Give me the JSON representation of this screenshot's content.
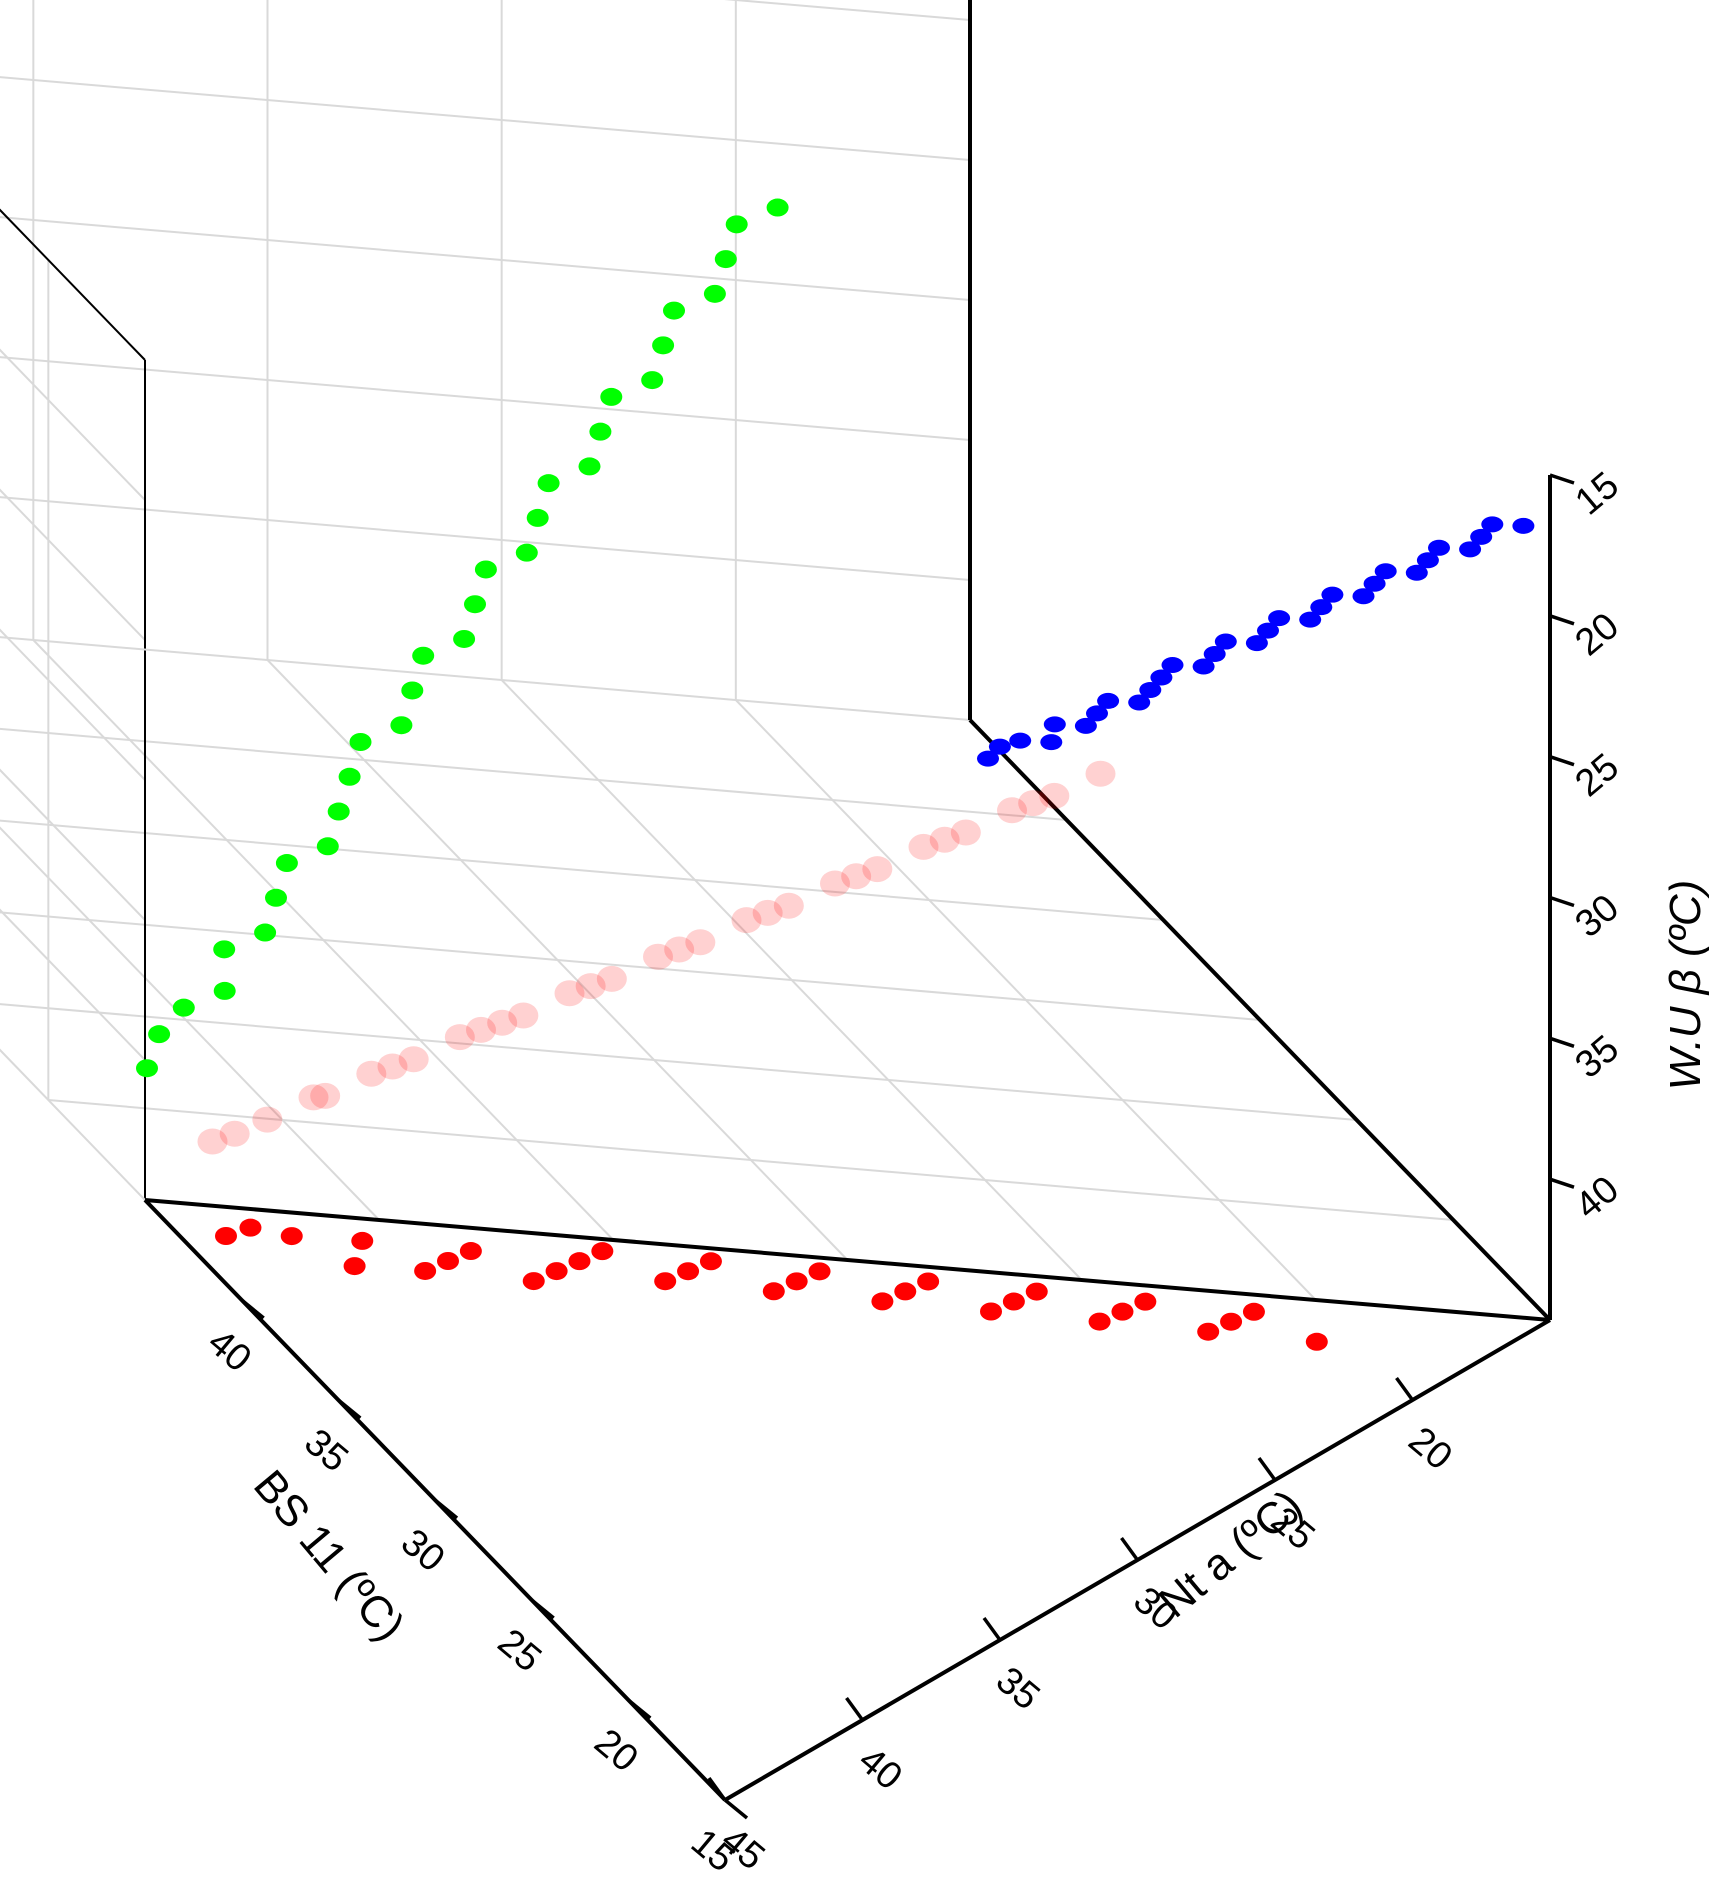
{
  "chart_data": {
    "type": "scatter",
    "title": "",
    "axes": {
      "x": {
        "label": "Nt a (ºC)",
        "ticks": [
          "45",
          "40",
          "35",
          "30",
          "25",
          "20"
        ],
        "range": [
          45,
          15
        ]
      },
      "y": {
        "label": "BS 11 (ºC)",
        "ticks": [
          "15",
          "20",
          "25",
          "30",
          "35",
          "40"
        ],
        "range": [
          15,
          45
        ]
      },
      "z": {
        "label": "W.U β (ºC)",
        "ticks": [
          "15",
          "20",
          "25",
          "30",
          "35",
          "40"
        ],
        "range": [
          15,
          45
        ]
      }
    },
    "grid": true,
    "colors": {
      "main": "#ff0000",
      "projection_xz": "#0000ff",
      "projection_yz": "#00ff00",
      "projection_xy": "#ff0000"
    },
    "series": [
      {
        "role": "main",
        "points": [
          {
            "x": 40.5,
            "y": 42.5,
            "z": 38.2
          },
          {
            "x": 39.8,
            "y": 41.8,
            "z": 37.4
          },
          {
            "x": 39.2,
            "y": 41.0,
            "z": 36.8
          },
          {
            "x": 38.4,
            "y": 40.2,
            "z": 36.0
          },
          {
            "x": 37.6,
            "y": 39.6,
            "z": 35.2
          },
          {
            "x": 36.8,
            "y": 38.8,
            "z": 34.6
          },
          {
            "x": 36.0,
            "y": 38.0,
            "z": 33.8
          },
          {
            "x": 35.2,
            "y": 37.2,
            "z": 33.0
          },
          {
            "x": 34.4,
            "y": 36.4,
            "z": 32.4
          },
          {
            "x": 33.6,
            "y": 35.6,
            "z": 31.6
          },
          {
            "x": 32.8,
            "y": 34.8,
            "z": 30.8
          },
          {
            "x": 32.0,
            "y": 34.0,
            "z": 30.2
          },
          {
            "x": 31.2,
            "y": 33.2,
            "z": 29.4
          },
          {
            "x": 30.4,
            "y": 32.4,
            "z": 28.6
          },
          {
            "x": 29.6,
            "y": 31.6,
            "z": 28.0
          },
          {
            "x": 28.8,
            "y": 30.8,
            "z": 27.2
          },
          {
            "x": 28.0,
            "y": 30.0,
            "z": 26.4
          },
          {
            "x": 27.2,
            "y": 29.2,
            "z": 25.8
          },
          {
            "x": 26.4,
            "y": 28.4,
            "z": 25.0
          },
          {
            "x": 25.6,
            "y": 27.6,
            "z": 24.2
          },
          {
            "x": 24.8,
            "y": 26.8,
            "z": 23.6
          },
          {
            "x": 24.0,
            "y": 26.0,
            "z": 22.8
          },
          {
            "x": 23.2,
            "y": 25.2,
            "z": 22.0
          },
          {
            "x": 22.4,
            "y": 24.4,
            "z": 21.4
          },
          {
            "x": 21.6,
            "y": 23.6,
            "z": 20.6
          },
          {
            "x": 20.8,
            "y": 22.8,
            "z": 19.8
          },
          {
            "x": 20.0,
            "y": 22.0,
            "z": 19.2
          },
          {
            "x": 19.2,
            "y": 21.2,
            "z": 18.4
          },
          {
            "x": 18.4,
            "y": 20.4,
            "z": 17.6
          },
          {
            "x": 17.6,
            "y": 19.6,
            "z": 17.0
          },
          {
            "x": 16.8,
            "y": 18.8,
            "z": 16.2
          }
        ]
      }
    ]
  }
}
